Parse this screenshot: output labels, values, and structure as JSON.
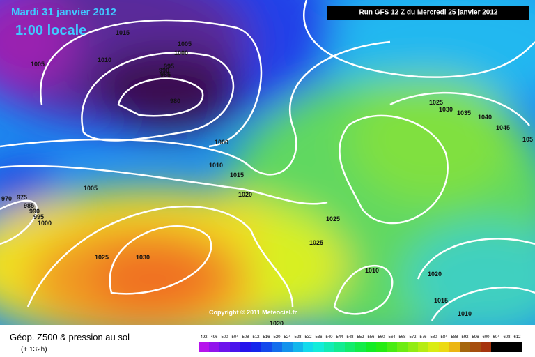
{
  "header": {
    "date": "Mardi 31 janvier 2012",
    "time": "1:00 locale",
    "run": "Run GFS 12 Z du Mercredi 25 janvier 2012"
  },
  "isobar_labels": [
    "1015",
    "1005",
    "1010",
    "1005",
    "1000",
    "995",
    "990",
    "985",
    "980",
    "1000",
    "1010",
    "1015",
    "1020",
    "1005",
    "970",
    "975",
    "985",
    "990",
    "995",
    "1000",
    "1025",
    "1030",
    "1025",
    "1025",
    "1010",
    "1020",
    "1015",
    "1010",
    "1025",
    "1030",
    "1035",
    "1040",
    "1045",
    "105",
    "1020"
  ],
  "copyright": "Copyright © 2011 Meteociel.fr",
  "legend": {
    "title": "Géop. Z500 & pression au sol",
    "lead": "(+ 132h)",
    "scale": [
      492,
      496,
      500,
      504,
      508,
      512,
      516,
      520,
      524,
      528,
      532,
      536,
      540,
      544,
      548,
      552,
      556,
      560,
      564,
      568,
      572,
      576,
      580,
      584,
      588,
      592,
      596,
      600,
      604,
      608,
      612
    ]
  }
}
